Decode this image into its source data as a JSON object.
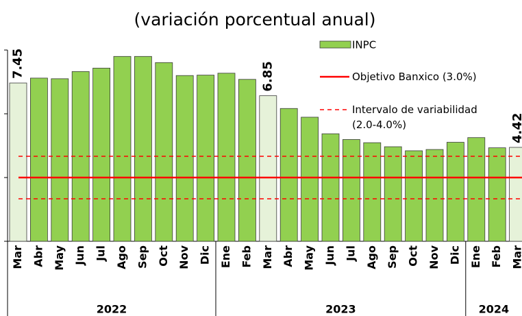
{
  "chart_data": {
    "type": "bar",
    "title": "(variación porcentual anual)",
    "categories": [
      "Mar",
      "Abr",
      "May",
      "Jun",
      "Jul",
      "Ago",
      "Sep",
      "Oct",
      "Nov",
      "Dic",
      "Ene",
      "Feb",
      "Mar",
      "Abr",
      "May",
      "Jun",
      "Jul",
      "Ago",
      "Sep",
      "Oct",
      "Nov",
      "Dic",
      "Ene",
      "Feb",
      "Mar"
    ],
    "groups": [
      {
        "label": "2022",
        "count": 10
      },
      {
        "label": "2023",
        "count": 12
      },
      {
        "label": "2024",
        "count": 3
      }
    ],
    "series": [
      {
        "name": "INPC",
        "color": "#92d050",
        "colors": [
          "#e6f2d9",
          "#92d050",
          "#92d050",
          "#92d050",
          "#92d050",
          "#92d050",
          "#92d050",
          "#92d050",
          "#92d050",
          "#92d050",
          "#92d050",
          "#92d050",
          "#e6f2d9",
          "#92d050",
          "#92d050",
          "#92d050",
          "#92d050",
          "#92d050",
          "#92d050",
          "#92d050",
          "#92d050",
          "#92d050",
          "#92d050",
          "#92d050",
          "#e6f2d9"
        ],
        "values": [
          7.45,
          7.68,
          7.65,
          7.99,
          8.15,
          8.7,
          8.7,
          8.41,
          7.8,
          7.82,
          7.91,
          7.62,
          6.85,
          6.25,
          5.84,
          5.06,
          4.79,
          4.64,
          4.45,
          4.26,
          4.32,
          4.66,
          4.88,
          4.4,
          4.42
        ],
        "value_labels": [
          "7.45",
          null,
          null,
          null,
          null,
          null,
          null,
          null,
          null,
          null,
          null,
          null,
          "6.85",
          null,
          null,
          null,
          null,
          null,
          null,
          null,
          null,
          null,
          null,
          null,
          "4.42"
        ]
      }
    ],
    "reference_lines": [
      {
        "name": "Objetivo Banxico (3.0%)",
        "values": [
          3.0
        ],
        "color": "#ff0000",
        "style": "solid"
      },
      {
        "name": "Intervalo de variabilidad (2.0-4.0%)",
        "values": [
          2.0,
          4.0
        ],
        "color": "#ff0000",
        "style": "dashed"
      }
    ],
    "label_color": "#1e5a1a",
    "ylim": [
      0,
      9
    ],
    "yticks": [
      0,
      3,
      6,
      9
    ]
  }
}
